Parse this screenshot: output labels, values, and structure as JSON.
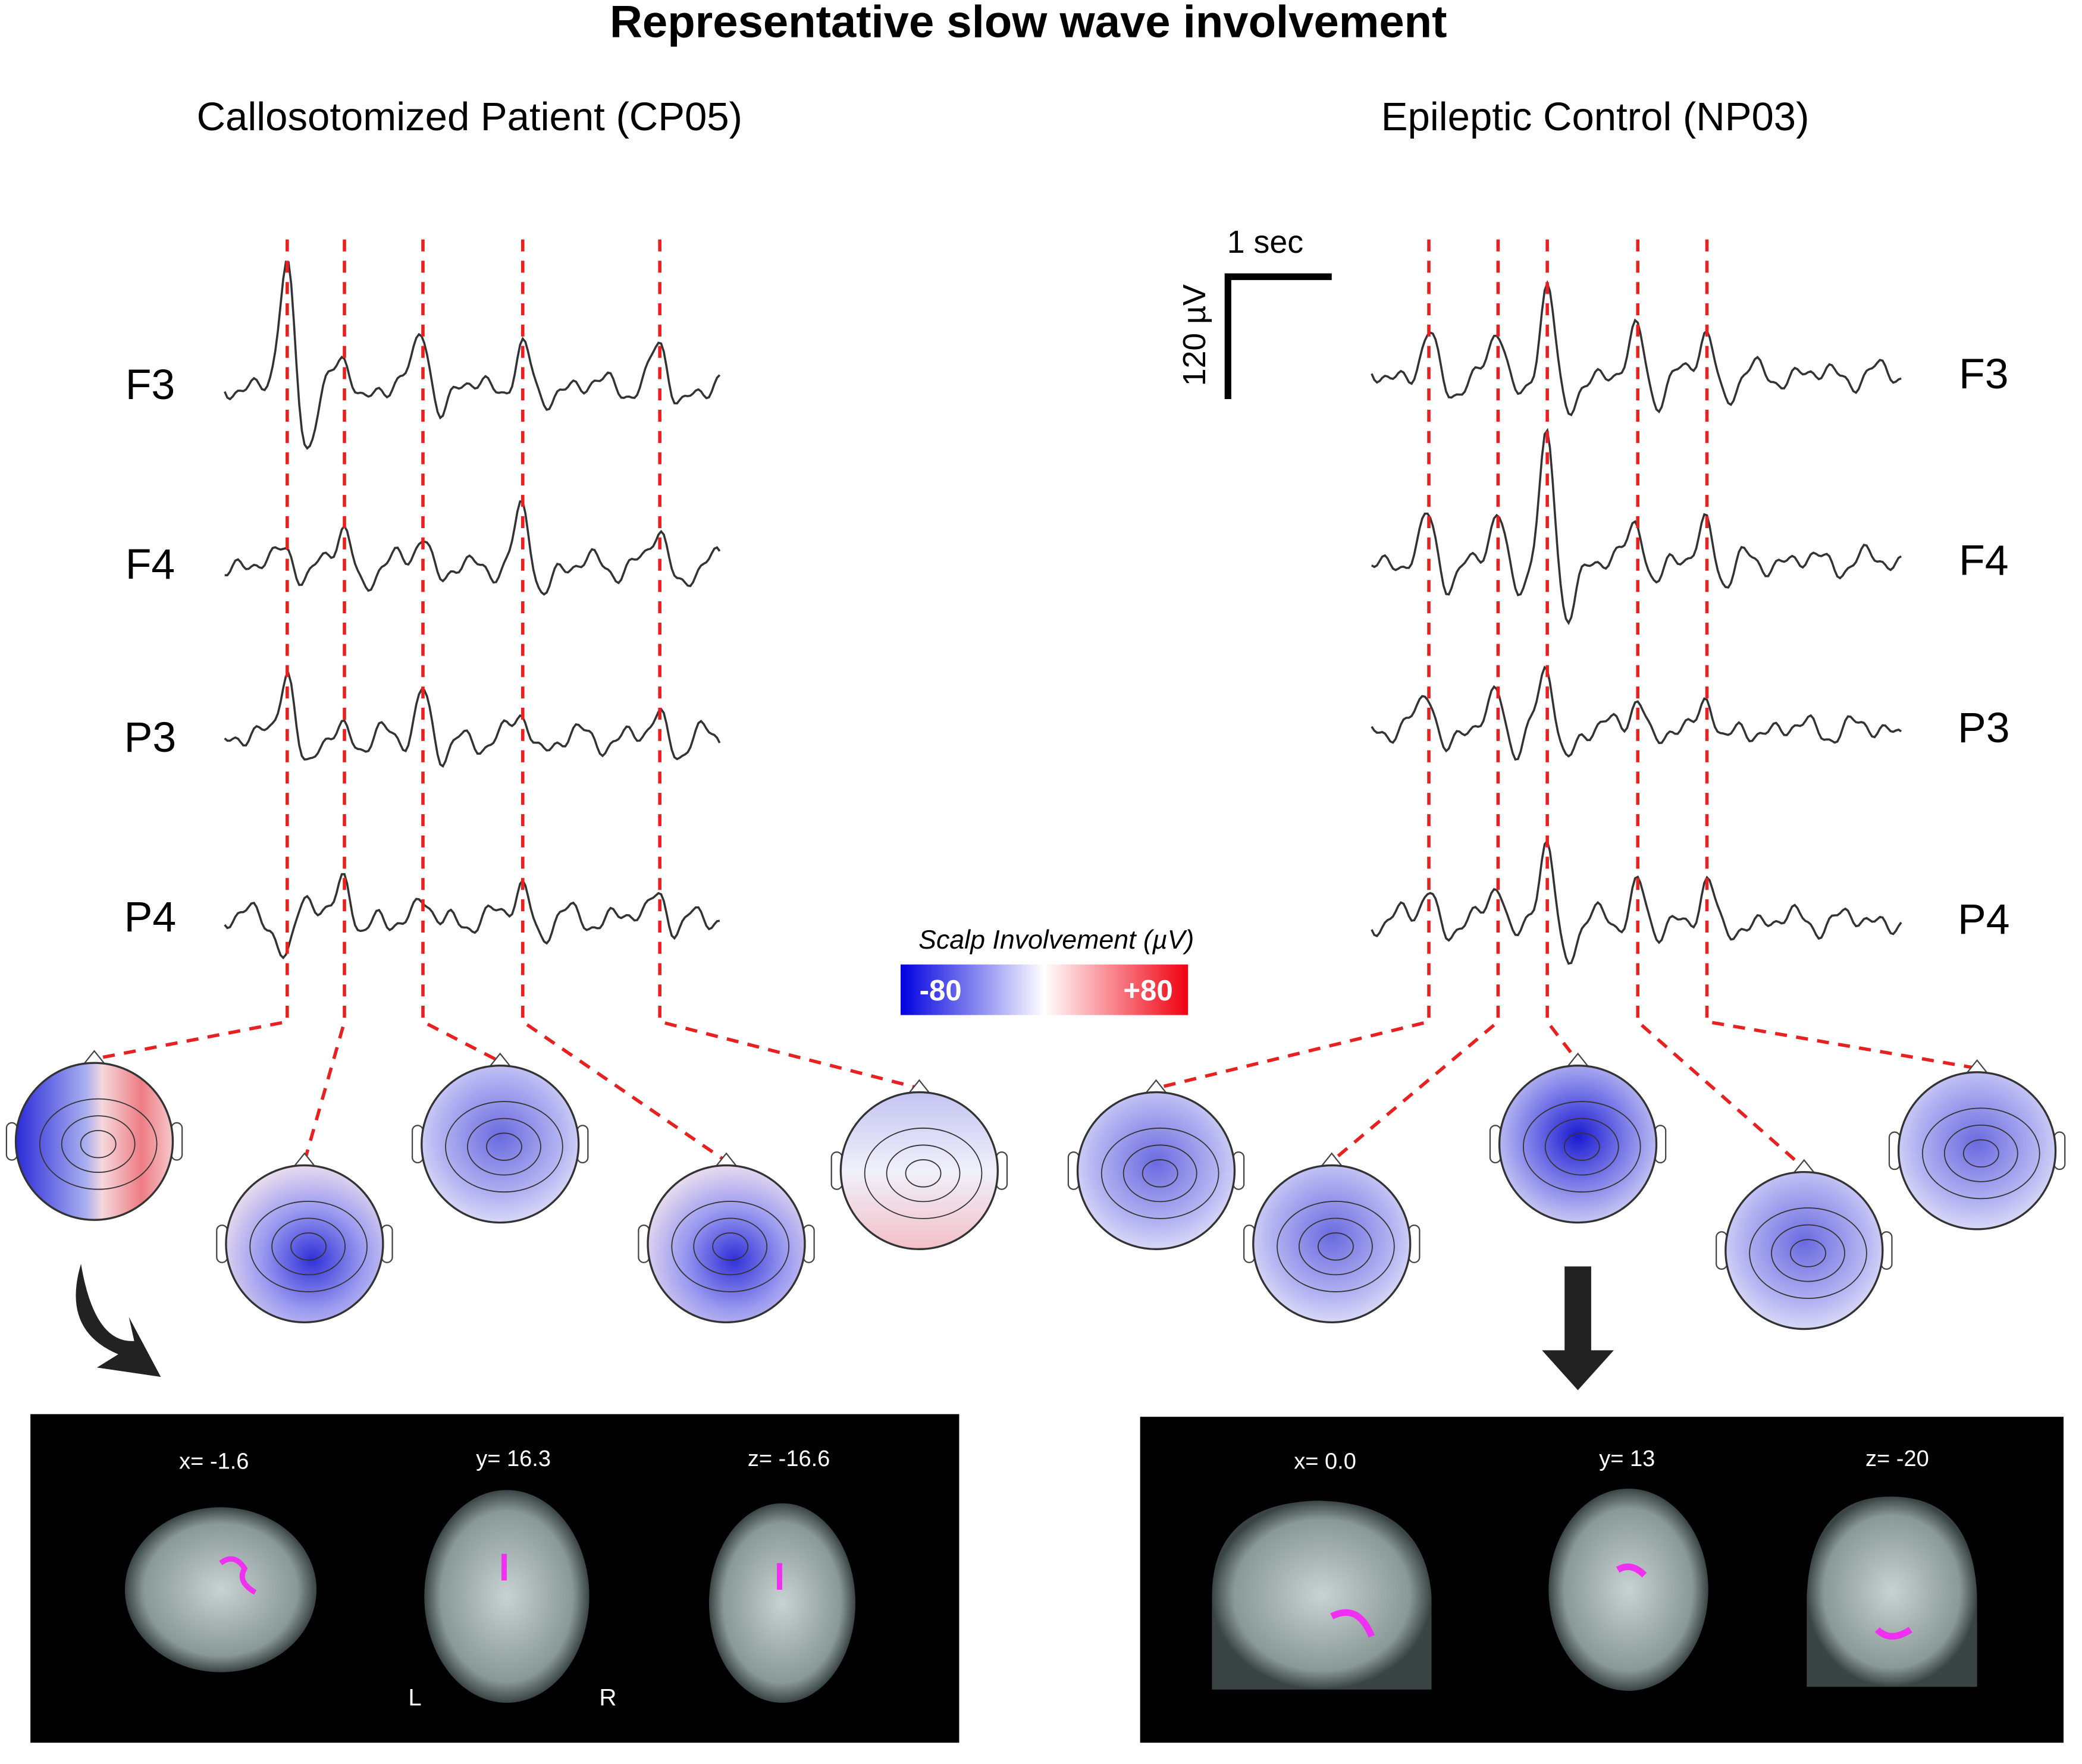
{
  "title": "Representative slow wave involvement",
  "panels": [
    {
      "title": "Callosotomized Patient (CP05)",
      "channels": [
        "F3",
        "F4",
        "P3",
        "P4"
      ],
      "slices": [
        "x= -1.6",
        "y= 16.3",
        "z= -16.6"
      ],
      "orientation": [
        "L",
        "R"
      ]
    },
    {
      "title": "Epileptic Control (NP03)",
      "channels": [
        "F3",
        "F4",
        "P3",
        "P4"
      ],
      "slices": [
        "x= 0.0",
        "y= 13",
        "z= -20"
      ]
    }
  ],
  "scale_bar": {
    "time": "1 sec",
    "amplitude": "120 µV"
  },
  "colorbar": {
    "title": "Scalp Involvement  (µV)",
    "min_label": "-80",
    "max_label": "+80"
  }
}
